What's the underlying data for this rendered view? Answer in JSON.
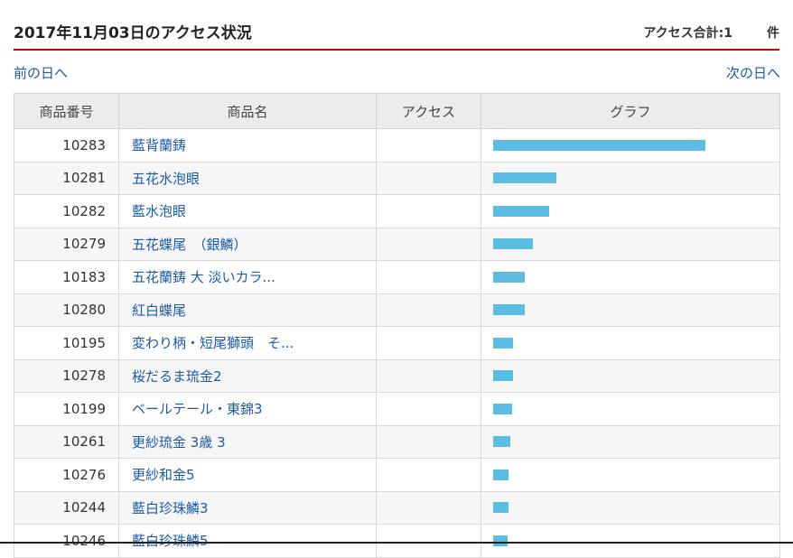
{
  "header": {
    "title": "2017年11月03日のアクセス状況",
    "total": "アクセス合計:1",
    "unit": "件"
  },
  "nav": {
    "prev": "前の日へ",
    "next": "次の日へ"
  },
  "table": {
    "columns": [
      "商品番号",
      "商品名",
      "アクセス",
      "グラフ"
    ],
    "rows": [
      {
        "id": "10283",
        "name": "藍背蘭鋳",
        "graph": 235
      },
      {
        "id": "10281",
        "name": "五花水泡眼",
        "graph": 70
      },
      {
        "id": "10282",
        "name": "藍水泡眼",
        "graph": 62
      },
      {
        "id": "10279",
        "name": "五花蝶尾　（銀鱗）",
        "graph": 44
      },
      {
        "id": "10183",
        "name": "五花蘭鋳 大 淡いカラ...",
        "graph": 35
      },
      {
        "id": "10280",
        "name": "紅白蝶尾",
        "graph": 35
      },
      {
        "id": "10195",
        "name": "変わり柄・短尾獅頭　そ...",
        "graph": 22
      },
      {
        "id": "10278",
        "name": "桜だるま琉金2",
        "graph": 22
      },
      {
        "id": "10199",
        "name": "ベールテール・東錦3",
        "graph": 21
      },
      {
        "id": "10261",
        "name": "更紗琉金 3歳 3",
        "graph": 19
      },
      {
        "id": "10276",
        "name": "更紗和金5",
        "graph": 17
      },
      {
        "id": "10244",
        "name": "藍白珍珠鱗3",
        "graph": 17
      },
      {
        "id": "10246",
        "name": "藍白珍珠鱗5",
        "graph": 16
      }
    ]
  }
}
